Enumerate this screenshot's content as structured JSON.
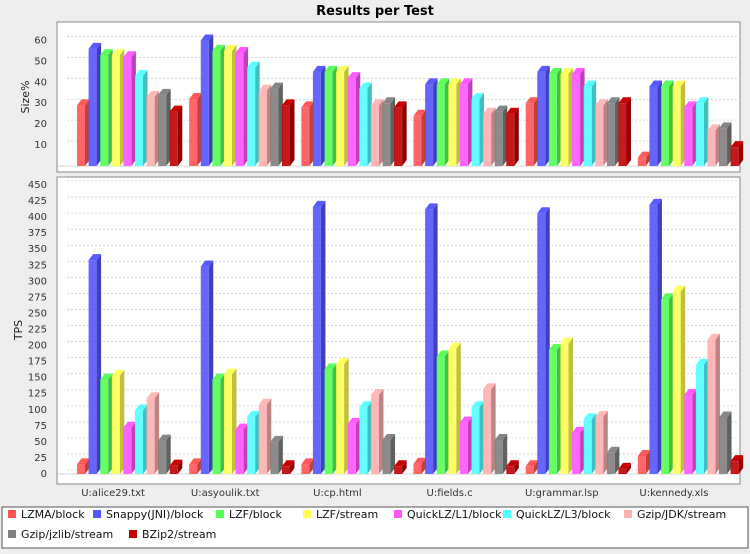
{
  "chart_data": {
    "type": "bar",
    "title": "Results per Test",
    "categories": [
      "U:alice29.txt",
      "U:asyoulik.txt",
      "U:cp.html",
      "U:fields.c",
      "U:grammar.lsp",
      "U:kennedy.xls"
    ],
    "series_names": [
      "LZMA/block",
      "Snappy(JNI)/block",
      "LZF/block",
      "LZF/stream",
      "QuickLZ/L1/block",
      "QuickLZ/L3/block",
      "Gzip/JDK/stream",
      "Gzip/jzlib/stream",
      "BZip2/stream"
    ],
    "series_colors": [
      "#ff5555",
      "#5555ff",
      "#55ff55",
      "#ffff55",
      "#ff55ff",
      "#55ffff",
      "#ffafaf",
      "#808080",
      "#c00000"
    ],
    "panels": [
      {
        "ylabel": "Size%",
        "ylim": [
          0,
          65
        ],
        "yticks": [
          10,
          20,
          30,
          40,
          50,
          60
        ],
        "series": [
          {
            "name": "LZMA/block",
            "values": [
              29,
              32,
              28,
              24,
              30,
              4
            ]
          },
          {
            "name": "Snappy(JNI)/block",
            "values": [
              56,
              60,
              45,
              39,
              45,
              38
            ]
          },
          {
            "name": "LZF/block",
            "values": [
              53,
              55,
              45,
              39,
              44,
              38
            ]
          },
          {
            "name": "LZF/stream",
            "values": [
              53,
              55,
              45,
              39,
              44,
              38
            ]
          },
          {
            "name": "QuickLZ/L1/block",
            "values": [
              52,
              54,
              42,
              39,
              44,
              28
            ]
          },
          {
            "name": "QuickLZ/L3/block",
            "values": [
              43,
              47,
              37,
              32,
              38,
              30
            ]
          },
          {
            "name": "Gzip/JDK/stream",
            "values": [
              33,
              36,
              29,
              25,
              29,
              17
            ]
          },
          {
            "name": "Gzip/jzlib/stream",
            "values": [
              34,
              37,
              30,
              26,
              30,
              18
            ]
          },
          {
            "name": "BZip2/stream",
            "values": [
              26,
              29,
              28,
              25,
              30,
              9
            ]
          }
        ]
      },
      {
        "ylabel": "TPS",
        "ylim": [
          0,
          450
        ],
        "yticks": [
          0,
          25,
          50,
          75,
          100,
          125,
          150,
          175,
          200,
          225,
          250,
          275,
          300,
          325,
          350,
          375,
          400,
          425,
          450
        ],
        "series": [
          {
            "name": "LZMA/block",
            "values": [
              15,
              15,
              15,
              16,
              12,
              28
            ]
          },
          {
            "name": "Snappy(JNI)/block",
            "values": [
              333,
              323,
              416,
              412,
              406,
              419
            ]
          },
          {
            "name": "LZF/block",
            "values": [
              147,
              147,
              163,
              183,
              193,
              272
            ]
          },
          {
            "name": "LZF/stream",
            "values": [
              153,
              155,
              171,
              195,
              203,
              284
            ]
          },
          {
            "name": "QuickLZ/L1/block",
            "values": [
              72,
              69,
              78,
              80,
              64,
              123
            ]
          },
          {
            "name": "QuickLZ/L3/block",
            "values": [
              99,
              89,
              104,
              104,
              85,
              170
            ]
          },
          {
            "name": "Gzip/JDK/stream",
            "values": [
              118,
              108,
              123,
              132,
              89,
              209
            ]
          },
          {
            "name": "Gzip/jzlib/stream",
            "values": [
              52,
              50,
              53,
              53,
              33,
              88
            ]
          },
          {
            "name": "BZip2/stream",
            "values": [
              13,
              12,
              12,
              12,
              8,
              20
            ]
          }
        ]
      }
    ]
  }
}
